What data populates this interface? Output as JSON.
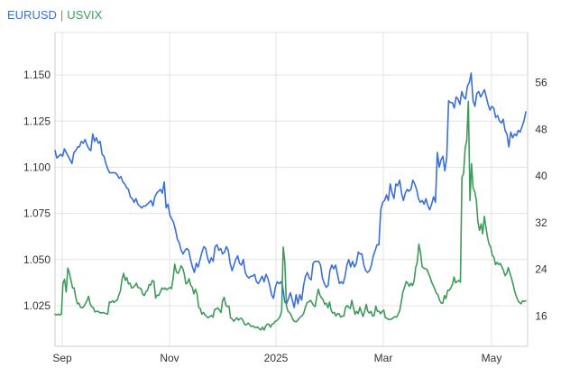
{
  "legend": {
    "series1": "EURUSD",
    "separator": "|",
    "series2": "USVIX"
  },
  "chart_data": {
    "type": "line",
    "title": "",
    "xlabel": "",
    "ylabel": "",
    "grid": true,
    "legend_placement": "top-left",
    "x_ticks": [
      "Sep",
      "Nov",
      "2025",
      "Mar",
      "May"
    ],
    "y_left": {
      "lim": [
        1.003,
        1.173
      ],
      "ticks": [
        "1.025",
        "1.050",
        "1.075",
        "1.100",
        "1.125",
        "1.150"
      ]
    },
    "y_right": {
      "lim": [
        10.8,
        64.6
      ],
      "ticks": [
        "16",
        "24",
        "32",
        "40",
        "48",
        "56"
      ]
    },
    "series": [
      {
        "name": "EURUSD",
        "axis": "left",
        "color": "#3a6fd8",
        "values": [
          1.109,
          1.105,
          1.106,
          1.107,
          1.106,
          1.11,
          1.108,
          1.106,
          1.104,
          1.102,
          1.108,
          1.109,
          1.111,
          1.111,
          1.114,
          1.113,
          1.115,
          1.112,
          1.11,
          1.109,
          1.118,
          1.114,
          1.116,
          1.113,
          1.114,
          1.107,
          1.106,
          1.102,
          1.099,
          1.097,
          1.097,
          1.097,
          1.097,
          1.096,
          1.094,
          1.095,
          1.092,
          1.091,
          1.089,
          1.088,
          1.084,
          1.083,
          1.081,
          1.083,
          1.08,
          1.079,
          1.078,
          1.079,
          1.079,
          1.08,
          1.081,
          1.082,
          1.079,
          1.084,
          1.086,
          1.087,
          1.088,
          1.086,
          1.092,
          1.078,
          1.08,
          1.074,
          1.072,
          1.07,
          1.066,
          1.061,
          1.059,
          1.055,
          1.053,
          1.055,
          1.056,
          1.055,
          1.05,
          1.046,
          1.043,
          1.048,
          1.046,
          1.05,
          1.054,
          1.057,
          1.056,
          1.051,
          1.048,
          1.051,
          1.049,
          1.057,
          1.058,
          1.055,
          1.056,
          1.053,
          1.054,
          1.057,
          1.055,
          1.048,
          1.044,
          1.047,
          1.05,
          1.052,
          1.048,
          1.047,
          1.05,
          1.043,
          1.041,
          1.04,
          1.041,
          1.041,
          1.042,
          1.038,
          1.037,
          1.039,
          1.041,
          1.038,
          1.042,
          1.04,
          1.036,
          1.031,
          1.029,
          1.035,
          1.038,
          1.037,
          1.038,
          1.035,
          1.027,
          1.026,
          1.029,
          1.032,
          1.028,
          1.024,
          1.031,
          1.026,
          1.031,
          1.028,
          1.036,
          1.041,
          1.043,
          1.04,
          1.039,
          1.048,
          1.049,
          1.049,
          1.049,
          1.047,
          1.04,
          1.037,
          1.035,
          1.036,
          1.044,
          1.047,
          1.045,
          1.047,
          1.042,
          1.037,
          1.038,
          1.037,
          1.041,
          1.047,
          1.05,
          1.046,
          1.049,
          1.046,
          1.048,
          1.054,
          1.053,
          1.053,
          1.047,
          1.044,
          1.043,
          1.044,
          1.047,
          1.052,
          1.055,
          1.058,
          1.058,
          1.077,
          1.081,
          1.082,
          1.085,
          1.082,
          1.091,
          1.086,
          1.083,
          1.091,
          1.09,
          1.093,
          1.086,
          1.082,
          1.086,
          1.088,
          1.087,
          1.088,
          1.093,
          1.091,
          1.088,
          1.083,
          1.081,
          1.082,
          1.08,
          1.083,
          1.079,
          1.077,
          1.08,
          1.084,
          1.081,
          1.108,
          1.1,
          1.104,
          1.106,
          1.098,
          1.105,
          1.136,
          1.135,
          1.135,
          1.132,
          1.138,
          1.137,
          1.134,
          1.141,
          1.138,
          1.137,
          1.144,
          1.146,
          1.151,
          1.136,
          1.133,
          1.14,
          1.141,
          1.138,
          1.14,
          1.142,
          1.138,
          1.134,
          1.131,
          1.133,
          1.132,
          1.127,
          1.128,
          1.125,
          1.124,
          1.126,
          1.12,
          1.118,
          1.111,
          1.119,
          1.116,
          1.118,
          1.117,
          1.12,
          1.119,
          1.122,
          1.125,
          1.13
        ]
      },
      {
        "name": "USVIX",
        "axis": "right",
        "color": "#3e9a5a",
        "values": [
          16.3,
          16.2,
          16.3,
          16.2,
          16.3,
          21.6,
          22.3,
          20.1,
          24.2,
          23.4,
          22.1,
          20.8,
          20.8,
          19.2,
          18.1,
          18.2,
          17.5,
          17.4,
          17.6,
          18.1,
          18.6,
          19.4,
          18.1,
          17.6,
          17.4,
          16.7,
          16.8,
          16.8,
          16.6,
          16.5,
          16.6,
          16.5,
          16.4,
          16.3,
          18.4,
          18.3,
          18.6,
          18.3,
          18.6,
          18.7,
          19.6,
          20.3,
          22.3,
          23.3,
          22.1,
          22.6,
          21.5,
          21.6,
          20.8,
          20.9,
          21.2,
          21.6,
          20.9,
          20.8,
          20.6,
          19.7,
          19.5,
          20.2,
          20.4,
          21.4,
          21.3,
          22.1,
          21.9,
          19.1,
          19.6,
          19.5,
          20.1,
          20.8,
          20.6,
          20.8,
          20.5,
          20.7,
          20.9,
          20.7,
          22.4,
          24.9,
          23.6,
          23.3,
          23.8,
          24.6,
          24.2,
          23.2,
          21.5,
          21.7,
          22.4,
          21.3,
          20.9,
          19.8,
          20.6,
          19.8,
          17.5,
          17.3,
          16.3,
          16.6,
          16.2,
          15.9,
          15.7,
          15.9,
          16.1,
          15.8,
          17.1,
          17.2,
          17.4,
          17.0,
          16.6,
          18.6,
          19.2,
          17.9,
          17.6,
          17.7,
          15.7,
          15.5,
          15.1,
          15.4,
          15.7,
          15.3,
          15.6,
          15.6,
          15.1,
          14.5,
          14.5,
          14.8,
          14.5,
          14.2,
          14.3,
          14.1,
          14.0,
          14.1,
          13.8,
          13.6,
          14.1,
          13.6,
          14.3,
          14.6,
          14.6,
          14.1,
          14.6,
          14.7,
          15.1,
          15.2,
          15.5,
          15.9,
          16.9,
          27.8,
          25.3,
          17.7,
          16.8,
          16.6,
          16.1,
          15.4,
          15.1,
          15.0,
          15.2,
          15.6,
          15.9,
          16.1,
          16.6,
          17.6,
          18.3,
          18.4,
          18.7,
          18.3,
          17.8,
          17.6,
          19.3,
          20.6,
          19.6,
          19.1,
          18.8,
          18.0,
          18.2,
          17.4,
          18.4,
          17.0,
          16.5,
          16.6,
          16.0,
          16.4,
          16.4,
          15.8,
          16.0,
          16.0,
          17.4,
          17.8,
          17.5,
          17.3,
          18.7,
          17.4,
          16.3,
          16.8,
          16.4,
          17.5,
          16.7,
          15.9,
          16.8,
          18.0,
          16.8,
          16.5,
          16.8,
          16.0,
          16.1,
          17.7,
          16.8,
          16.8,
          16.4,
          16.8,
          17.0,
          15.7,
          15.6,
          15.4,
          15.4,
          15.5,
          15.7,
          15.9,
          15.8,
          16.3,
          16.9,
          18.5,
          20.1,
          20.9,
          21.9,
          21.6,
          21.1,
          21.6,
          21.2,
          22.0,
          24.3,
          25.3,
          28.3,
          26.9,
          24.5,
          24.2,
          24.1,
          24.0,
          23.3,
          22.7,
          21.8,
          21.2,
          20.6,
          19.9,
          19.6,
          18.7,
          18.2,
          18.2,
          19.5,
          19.0,
          20.4,
          20.4,
          20.8,
          21.4,
          22.7,
          21.7,
          21.9,
          22.1,
          21.8,
          39.8,
          40.4,
          44.9,
          46.0,
          52.8,
          35.8,
          42.1,
          37.9,
          37.3,
          35.9,
          32.1,
          30.7,
          31.8,
          30.1,
          33.1,
          31.2,
          29.5,
          28.3,
          27.8,
          26.4,
          26.1,
          24.8,
          25.2,
          24.8,
          25.0,
          24.4,
          23.8,
          22.9,
          23.3,
          24.3,
          23.4,
          22.5,
          21.5,
          20.3,
          19.4,
          18.7,
          18.3,
          18.1,
          18.6,
          18.5,
          18.6
        ]
      }
    ]
  }
}
